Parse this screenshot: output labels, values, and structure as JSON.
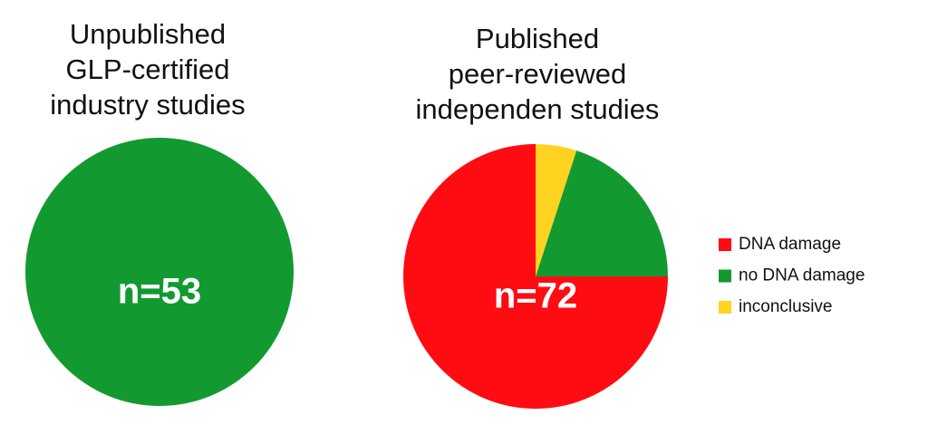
{
  "chart_data": [
    {
      "type": "pie",
      "title": [
        "Unpublished",
        "GLP-certified",
        "industry studies"
      ],
      "label": "n=53",
      "values": [
        100
      ],
      "colors": [
        "#129a31"
      ]
    },
    {
      "type": "pie",
      "title": [
        "Published",
        "peer-reviewed",
        "independen studies"
      ],
      "label": "n=72",
      "categories": [
        "DNA damage",
        "no DNA damage",
        "inconclusive"
      ],
      "values": [
        75,
        20,
        5
      ],
      "colors": [
        "#ff0c13",
        "#129a31",
        "#ffd320"
      ],
      "legend": "right"
    }
  ]
}
